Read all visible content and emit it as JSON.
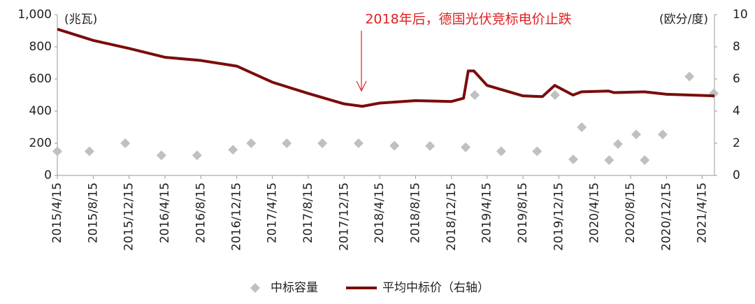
{
  "chart_data": {
    "type": "scatter-line",
    "annotation": "2018年后，德国光伏竞标电价止跌",
    "ylabel": "(兆瓦)",
    "y2label": "(欧分/度)",
    "xlim": [
      "2015/4/15",
      "2021/5/27"
    ],
    "xticks": [
      "2015/4/15",
      "2015/8/15",
      "2015/12/15",
      "2016/4/15",
      "2016/8/15",
      "2016/12/15",
      "2017/4/15",
      "2017/8/15",
      "2017/12/15",
      "2018/4/15",
      "2018/8/15",
      "2018/12/15",
      "2019/4/15",
      "2019/8/15",
      "2019/12/15",
      "2020/4/15",
      "2020/8/15",
      "2020/12/15",
      "2021/4/15"
    ],
    "ylim": [
      0,
      1000
    ],
    "yticks": [
      0,
      200,
      400,
      600,
      800,
      {
        "value": 1000,
        "label": "1,000"
      }
    ],
    "y2lim": [
      0,
      10
    ],
    "y2ticks": [
      0,
      2,
      4,
      6,
      8,
      10
    ],
    "series": [
      {
        "name": "中标容量",
        "type": "scatter",
        "color": "#c0c0c0",
        "x": [
          "2015/4/15",
          "2015/8/2",
          "2015/12/2",
          "2016/4/3",
          "2016/8/2",
          "2016/12/2",
          "2017/2/2",
          "2017/6/3",
          "2017/10/2",
          "2018/2/2",
          "2018/6/4",
          "2018/10/3",
          "2019/2/1",
          "2019/3/4",
          "2019/6/2",
          "2019/10/2",
          "2019/12/2",
          "2020/2/2",
          "2020/3/2",
          "2020/6/3",
          "2020/7/3",
          "2020/9/3",
          "2020/10/2",
          "2020/12/2",
          "2021/3/3",
          "2021/5/25"
        ],
        "values": [
          150,
          150,
          200,
          125,
          125,
          160,
          200,
          200,
          200,
          200,
          185,
          183,
          175,
          500,
          150,
          150,
          500,
          100,
          300,
          95,
          195,
          255,
          95,
          255,
          615,
          510
        ]
      },
      {
        "name": "平均中标价（右轴）",
        "type": "line",
        "axis": "y2",
        "color": "#7b0c0c",
        "x": [
          "2015/4/15",
          "2015/8/15",
          "2015/12/15",
          "2016/4/15",
          "2016/8/15",
          "2016/12/15",
          "2017/4/15",
          "2017/8/15",
          "2017/12/15",
          "2018/2/15",
          "2018/4/15",
          "2018/8/15",
          "2018/12/15",
          "2019/1/25",
          "2019/2/10",
          "2019/3/1",
          "2019/4/15",
          "2019/8/15",
          "2019/10/20",
          "2019/12/1",
          "2020/2/1",
          "2020/3/1",
          "2020/6/1",
          "2020/6/20",
          "2020/10/1",
          "2020/12/15",
          "2021/5/27"
        ],
        "values": [
          9.1,
          8.4,
          7.9,
          7.35,
          7.15,
          6.8,
          5.8,
          5.1,
          4.45,
          4.3,
          4.5,
          4.65,
          4.6,
          4.8,
          6.5,
          6.5,
          5.6,
          4.95,
          4.9,
          5.6,
          5.0,
          5.2,
          5.25,
          5.15,
          5.2,
          5.05,
          4.95
        ]
      }
    ]
  }
}
